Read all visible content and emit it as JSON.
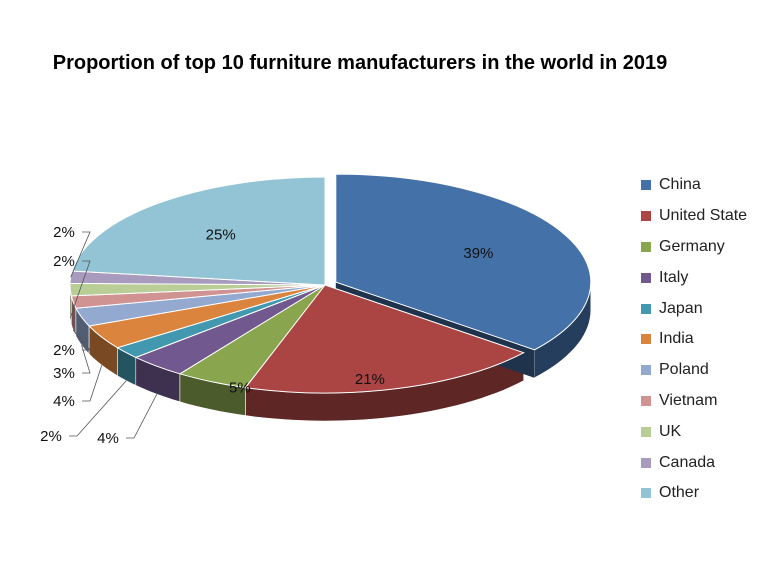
{
  "chart_data": {
    "type": "pie",
    "title": "Proportion of top 10 furniture manufacturers in the world in 2019",
    "legend_position": "right",
    "slices": [
      {
        "label": "China",
        "value": 39,
        "display": "39%",
        "color": "#4571a9"
      },
      {
        "label": "United State",
        "value": 21,
        "display": "21%",
        "color": "#aa4543"
      },
      {
        "label": "Germany",
        "value": 5,
        "display": "5%",
        "color": "#89a54e"
      },
      {
        "label": "Italy",
        "value": 4,
        "display": "4%",
        "color": "#71588f"
      },
      {
        "label": "Japan",
        "value": 2,
        "display": "2%",
        "color": "#4198af"
      },
      {
        "label": "India",
        "value": 4,
        "display": "4%",
        "color": "#db843d"
      },
      {
        "label": "Poland",
        "value": 3,
        "display": "3%",
        "color": "#93a9cf"
      },
      {
        "label": "Vietnam",
        "value": 2,
        "display": "2%",
        "color": "#d19392"
      },
      {
        "label": "UK",
        "value": 2,
        "display": "2%",
        "color": "#b9cd96"
      },
      {
        "label": "Canada",
        "value": 2,
        "display": "2%",
        "color": "#a99bbd"
      },
      {
        "label": "Other",
        "value": 25,
        "display": "25%",
        "color": "#92c4d6"
      }
    ]
  }
}
